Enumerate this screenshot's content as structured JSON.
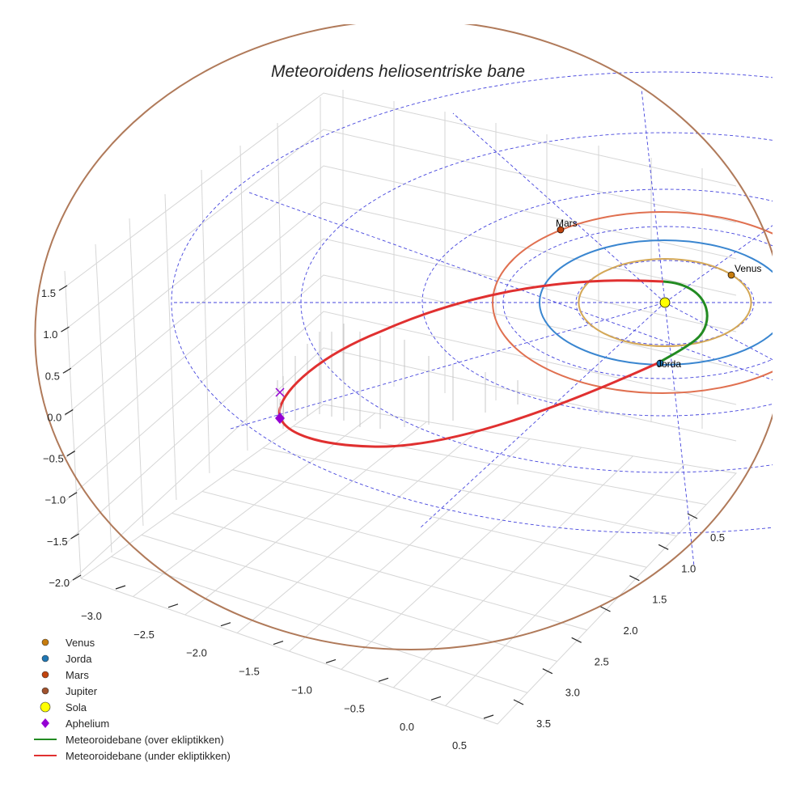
{
  "chart_data": {
    "type": "line",
    "projection": "3d",
    "title": "Meteoroidens heliosentriske bane",
    "x_ticks": [
      "−3.0",
      "−2.5",
      "−2.0",
      "−1.5",
      "−1.0",
      "−0.5",
      "0.0",
      "0.5"
    ],
    "y_ticks": [
      "0.5",
      "1.0",
      "1.5",
      "2.0",
      "2.5",
      "3.0",
      "3.5"
    ],
    "z_ticks": [
      "1.5",
      "1.0",
      "0.5",
      "0.0",
      "−0.5",
      "−1.0",
      "−1.5",
      "−2.0"
    ],
    "xlim": [
      -3.2,
      0.6
    ],
    "ylim": [
      0.2,
      3.7
    ],
    "zlim": [
      -2.2,
      1.8
    ],
    "orbit_radii_au": {
      "Venus": 0.72,
      "Jorda": 1.0,
      "Mars": 1.52,
      "Jupiter": 5.2
    },
    "planets": [
      {
        "name": "Venus",
        "label": "Venus",
        "color": "#c77c0e"
      },
      {
        "name": "Jorda",
        "label": "Jorda",
        "color": "#1f77b4"
      },
      {
        "name": "Mars",
        "label": "Mars",
        "color": "#c1440e"
      },
      {
        "name": "Jupiter",
        "color": "#b07040"
      }
    ],
    "series": [
      {
        "name": "Meteoroidebane (over ekliptikken)",
        "color": "#228b22"
      },
      {
        "name": "Meteoroidebane (under ekliptikken)",
        "color": "#e03030"
      }
    ],
    "legend": [
      {
        "label": "Venus",
        "color": "#c77c0e",
        "marker": "dot"
      },
      {
        "label": "Jorda",
        "color": "#1f77b4",
        "marker": "dot"
      },
      {
        "label": "Mars",
        "color": "#c1440e",
        "marker": "dot"
      },
      {
        "label": "Jupiter",
        "color": "#a0522d",
        "marker": "dot"
      },
      {
        "label": "Sola",
        "color": "#ffff00",
        "marker": "big-dot"
      },
      {
        "label": "Aphelium",
        "color": "#9400d3",
        "marker": "diamond"
      },
      {
        "label": "Meteoroidebane (over ekliptikken)",
        "color": "#228b22",
        "marker": "line"
      },
      {
        "label": "Meteoroidebane (under ekliptikken)",
        "color": "#e03030",
        "marker": "line"
      }
    ]
  }
}
